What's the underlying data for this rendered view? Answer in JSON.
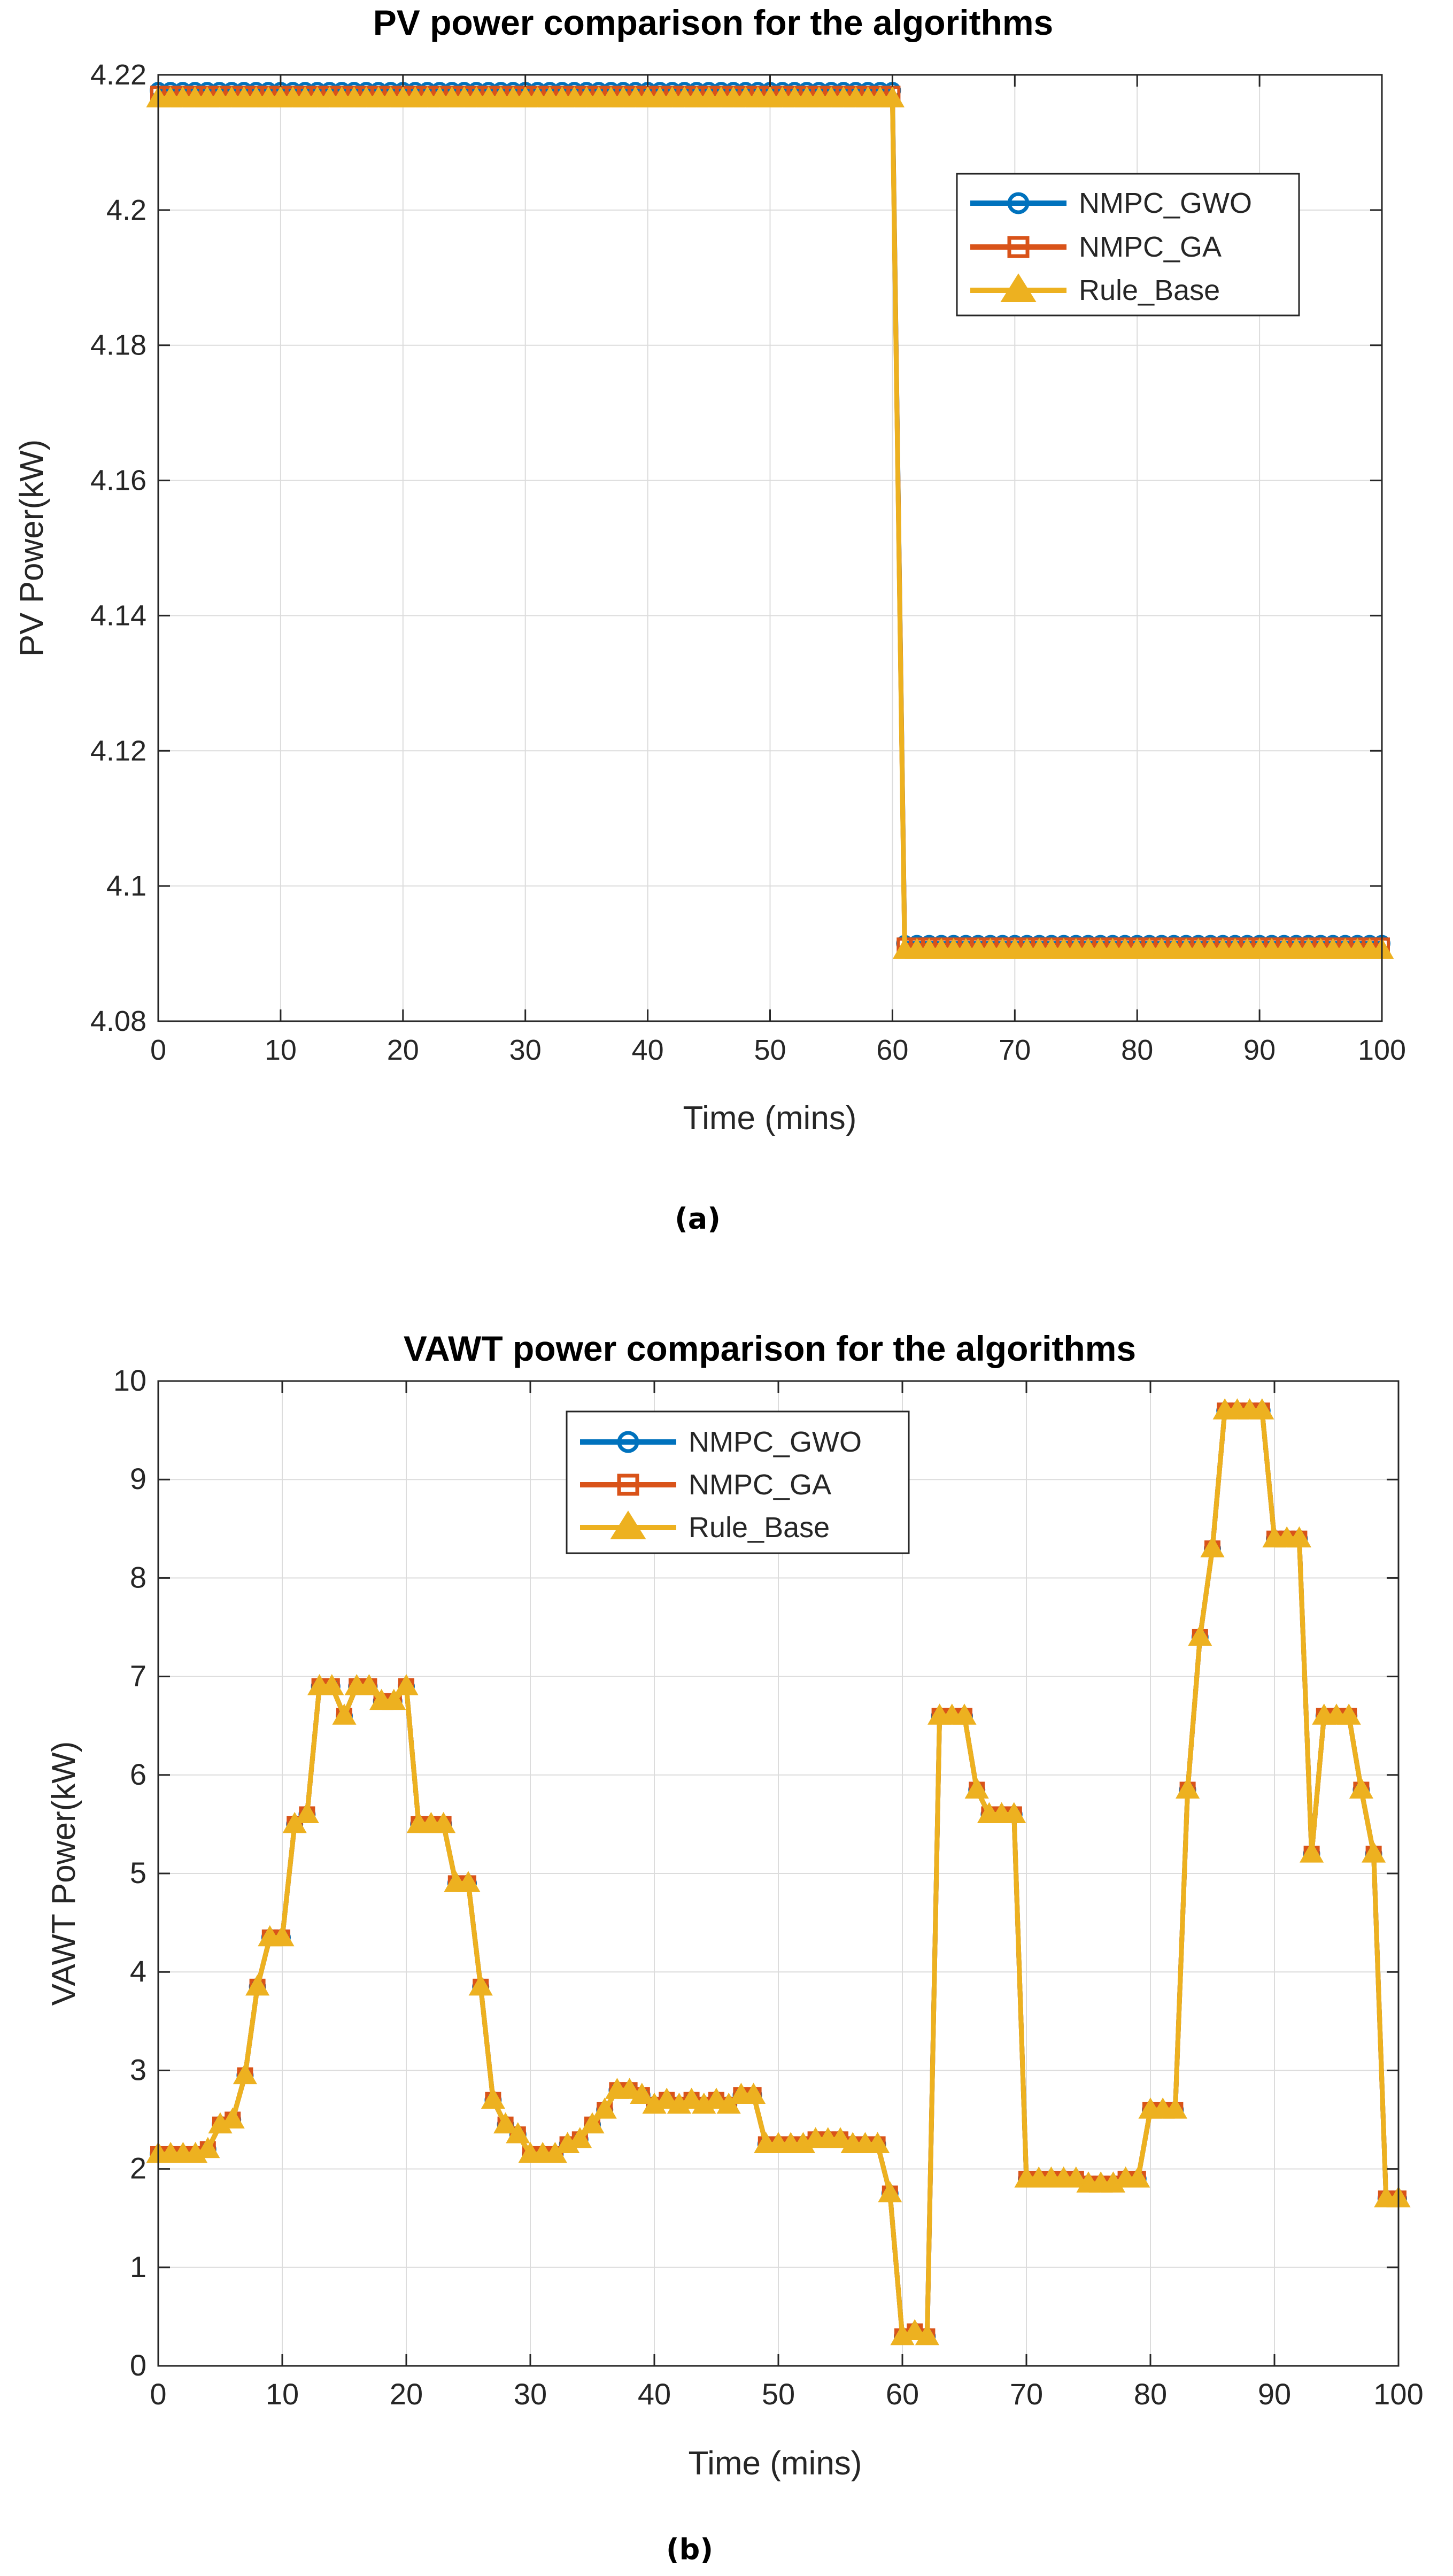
{
  "chart_data": [
    {
      "type": "line",
      "title": "PV power comparison for the algorithms",
      "xlabel": "Time (mins)",
      "ylabel": "PV Power(kW)",
      "xlim": [
        0,
        100
      ],
      "ylim": [
        4.08,
        4.22
      ],
      "xticks": [
        0,
        10,
        20,
        30,
        40,
        50,
        60,
        70,
        80,
        90,
        100
      ],
      "yticks": [
        4.08,
        4.1,
        4.12,
        4.14,
        4.16,
        4.18,
        4.2,
        4.22
      ],
      "ytick_labels": [
        "4.08",
        "4.1",
        "4.12",
        "4.14",
        "4.16",
        "4.18",
        "4.2",
        "4.22"
      ],
      "grid": true,
      "legend_location": "top-right",
      "panel_label": "(a)",
      "x": [
        0,
        60,
        61,
        100
      ],
      "series": [
        {
          "name": "NMPC_GWO",
          "marker": "circle",
          "color": "#0072BD",
          "values": [
            4.2177,
            4.2177,
            4.0915,
            4.0915
          ]
        },
        {
          "name": "NMPC_GA",
          "marker": "square",
          "color": "#D95319",
          "values": [
            4.2172,
            4.2172,
            4.0912,
            4.0912
          ]
        },
        {
          "name": "Rule_Base",
          "marker": "triangle",
          "color": "#EDB120",
          "values": [
            4.2165,
            4.2165,
            4.0905,
            4.0905
          ]
        }
      ]
    },
    {
      "type": "line",
      "title": "VAWT power comparison for the algorithms",
      "xlabel": "Time (mins)",
      "ylabel": "VAWT Power(kW)",
      "xlim": [
        0,
        100
      ],
      "ylim": [
        0,
        10
      ],
      "xticks": [
        0,
        10,
        20,
        30,
        40,
        50,
        60,
        70,
        80,
        90,
        100
      ],
      "yticks": [
        0,
        1,
        2,
        3,
        4,
        5,
        6,
        7,
        8,
        9,
        10
      ],
      "ytick_labels": [
        "0",
        "1",
        "2",
        "3",
        "4",
        "5",
        "6",
        "7",
        "8",
        "9",
        "10"
      ],
      "grid": true,
      "legend_location": "top-center",
      "panel_label": "(b)",
      "x": [
        0,
        1,
        2,
        3,
        4,
        5,
        6,
        7,
        8,
        9,
        10,
        11,
        12,
        13,
        14,
        15,
        16,
        17,
        18,
        19,
        20,
        21,
        22,
        23,
        24,
        25,
        26,
        27,
        28,
        29,
        30,
        31,
        32,
        33,
        34,
        35,
        36,
        37,
        38,
        39,
        40,
        41,
        42,
        43,
        44,
        45,
        46,
        47,
        48,
        49,
        50,
        51,
        52,
        53,
        54,
        55,
        56,
        57,
        58,
        59,
        60,
        61,
        62,
        63,
        64,
        65,
        66,
        67,
        68,
        69,
        70,
        71,
        72,
        73,
        74,
        75,
        76,
        77,
        78,
        79,
        80,
        81,
        82,
        83,
        84,
        85,
        86,
        87,
        88,
        89,
        90,
        91,
        92,
        93,
        94,
        95,
        96,
        97,
        98,
        99,
        100
      ],
      "series": [
        {
          "name": "NMPC_GWO",
          "marker": "circle",
          "color": "#0072BD",
          "values": [
            2.15,
            2.15,
            2.15,
            2.15,
            2.2,
            2.45,
            2.5,
            2.95,
            3.85,
            4.35,
            4.35,
            5.5,
            5.6,
            6.9,
            6.9,
            6.6,
            6.9,
            6.9,
            6.75,
            6.75,
            6.9,
            5.5,
            5.5,
            5.5,
            4.9,
            4.9,
            3.85,
            2.7,
            2.45,
            2.35,
            2.15,
            2.15,
            2.15,
            2.25,
            2.3,
            2.45,
            2.6,
            2.8,
            2.8,
            2.75,
            2.65,
            2.7,
            2.65,
            2.7,
            2.65,
            2.7,
            2.65,
            2.75,
            2.75,
            2.25,
            2.25,
            2.25,
            2.25,
            2.3,
            2.3,
            2.3,
            2.25,
            2.25,
            2.25,
            1.75,
            0.3,
            0.35,
            0.3,
            6.6,
            6.6,
            6.6,
            5.85,
            5.6,
            5.6,
            5.6,
            1.9,
            1.9,
            1.9,
            1.9,
            1.9,
            1.85,
            1.85,
            1.85,
            1.9,
            1.9,
            2.6,
            2.6,
            2.6,
            5.85,
            7.4,
            8.3,
            9.7,
            9.7,
            9.7,
            9.7,
            8.4,
            8.4,
            8.4,
            5.2,
            6.6,
            6.6,
            6.6,
            5.85,
            5.2,
            1.7,
            1.7
          ]
        },
        {
          "name": "NMPC_GA",
          "marker": "square",
          "color": "#D95319",
          "values": [
            2.15,
            2.15,
            2.15,
            2.15,
            2.2,
            2.45,
            2.5,
            2.95,
            3.85,
            4.35,
            4.35,
            5.5,
            5.6,
            6.9,
            6.9,
            6.6,
            6.9,
            6.9,
            6.75,
            6.75,
            6.9,
            5.5,
            5.5,
            5.5,
            4.9,
            4.9,
            3.85,
            2.7,
            2.45,
            2.35,
            2.15,
            2.15,
            2.15,
            2.25,
            2.3,
            2.45,
            2.6,
            2.8,
            2.8,
            2.75,
            2.65,
            2.7,
            2.65,
            2.7,
            2.65,
            2.7,
            2.65,
            2.75,
            2.75,
            2.25,
            2.25,
            2.25,
            2.25,
            2.3,
            2.3,
            2.3,
            2.25,
            2.25,
            2.25,
            1.75,
            0.3,
            0.35,
            0.3,
            6.6,
            6.6,
            6.6,
            5.85,
            5.6,
            5.6,
            5.6,
            1.9,
            1.9,
            1.9,
            1.9,
            1.9,
            1.85,
            1.85,
            1.85,
            1.9,
            1.9,
            2.6,
            2.6,
            2.6,
            5.85,
            7.4,
            8.3,
            9.7,
            9.7,
            9.7,
            9.7,
            8.4,
            8.4,
            8.4,
            5.2,
            6.6,
            6.6,
            6.6,
            5.85,
            5.2,
            1.7,
            1.7
          ]
        },
        {
          "name": "Rule_Base",
          "marker": "triangle",
          "color": "#EDB120",
          "values": [
            2.15,
            2.15,
            2.15,
            2.15,
            2.2,
            2.45,
            2.5,
            2.95,
            3.85,
            4.35,
            4.35,
            5.5,
            5.6,
            6.9,
            6.9,
            6.6,
            6.9,
            6.9,
            6.75,
            6.75,
            6.9,
            5.5,
            5.5,
            5.5,
            4.9,
            4.9,
            3.85,
            2.7,
            2.45,
            2.35,
            2.15,
            2.15,
            2.15,
            2.25,
            2.3,
            2.45,
            2.6,
            2.8,
            2.8,
            2.75,
            2.65,
            2.7,
            2.65,
            2.7,
            2.65,
            2.7,
            2.65,
            2.75,
            2.75,
            2.25,
            2.25,
            2.25,
            2.25,
            2.3,
            2.3,
            2.3,
            2.25,
            2.25,
            2.25,
            1.75,
            0.3,
            0.35,
            0.3,
            6.6,
            6.6,
            6.6,
            5.85,
            5.6,
            5.6,
            5.6,
            1.9,
            1.9,
            1.9,
            1.9,
            1.9,
            1.85,
            1.85,
            1.85,
            1.9,
            1.9,
            2.6,
            2.6,
            2.6,
            5.85,
            7.4,
            8.3,
            9.7,
            9.7,
            9.7,
            9.7,
            8.4,
            8.4,
            8.4,
            5.2,
            6.6,
            6.6,
            6.6,
            5.85,
            5.2,
            1.7,
            1.7
          ]
        }
      ]
    }
  ]
}
